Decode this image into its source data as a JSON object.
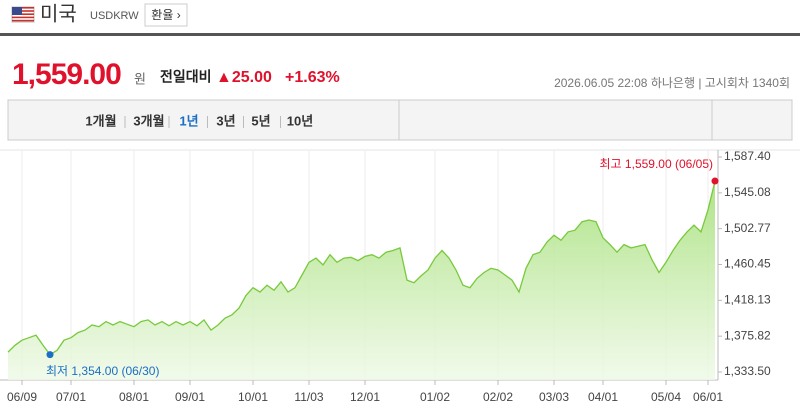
{
  "header": {
    "name": "미국",
    "code": "USDKRW",
    "button": "환율 ›"
  },
  "price": {
    "value": "1,559.00",
    "unit": "원",
    "change_label": "전일대비",
    "change": "▲25.00",
    "change_pct": "+1.63%",
    "info": "2026.06.05 22:08 하나은행 | 고시회차 1340회"
  },
  "tabs": {
    "items": [
      "1개월",
      "3개월",
      "1년",
      "3년",
      "5년",
      "10년"
    ],
    "selected": 2
  },
  "chart_data": {
    "type": "area",
    "color": "#78c93c",
    "grid": true,
    "categories": [
      null,
      null,
      "06/09",
      null,
      null,
      null,
      null,
      null,
      null,
      "07/01",
      null,
      null,
      null,
      null,
      null,
      null,
      null,
      null,
      "08/01",
      null,
      null,
      null,
      null,
      null,
      null,
      null,
      "09/01",
      null,
      null,
      null,
      null,
      null,
      null,
      null,
      null,
      "10/01",
      null,
      null,
      null,
      null,
      null,
      null,
      null,
      "11/03",
      null,
      null,
      null,
      null,
      null,
      null,
      null,
      "12/01",
      null,
      null,
      null,
      null,
      null,
      null,
      null,
      null,
      null,
      "01/02",
      null,
      null,
      null,
      null,
      null,
      null,
      null,
      null,
      "02/02",
      null,
      null,
      null,
      null,
      null,
      null,
      null,
      "03/03",
      null,
      null,
      null,
      null,
      null,
      null,
      "04/01",
      null,
      null,
      null,
      null,
      null,
      null,
      null,
      null,
      "05/04",
      null,
      null,
      null,
      null,
      null,
      "06/01",
      null
    ],
    "values": [
      1357,
      1365,
      1371,
      1374,
      1377,
      1365,
      1354,
      1359,
      1371,
      1374,
      1380,
      1383,
      1389,
      1387,
      1393,
      1389,
      1393,
      1390,
      1387,
      1393,
      1395,
      1389,
      1393,
      1388,
      1393,
      1389,
      1393,
      1388,
      1395,
      1383,
      1389,
      1397,
      1401,
      1409,
      1424,
      1433,
      1428,
      1436,
      1430,
      1440,
      1428,
      1433,
      1448,
      1463,
      1468,
      1460,
      1472,
      1463,
      1468,
      1469,
      1465,
      1470,
      1472,
      1468,
      1475,
      1477,
      1480,
      1442,
      1439,
      1447,
      1454,
      1468,
      1477,
      1468,
      1454,
      1436,
      1433,
      1444,
      1451,
      1456,
      1454,
      1448,
      1442,
      1428,
      1456,
      1472,
      1475,
      1487,
      1495,
      1489,
      1499,
      1501,
      1511,
      1513,
      1511,
      1492,
      1484,
      1475,
      1484,
      1480,
      1482,
      1484,
      1466,
      1451,
      1463,
      1477,
      1489,
      1499,
      1507,
      1499,
      1525,
      1559
    ],
    "ylim": [
      1333.5,
      1587.4
    ],
    "yticks": [
      {
        "value": 1333.5,
        "label": "1,333.50"
      },
      {
        "value": 1375.82,
        "label": "1,375.82"
      },
      {
        "value": 1418.13,
        "label": "1,418.13"
      },
      {
        "value": 1460.45,
        "label": "1,460.45"
      },
      {
        "value": 1502.77,
        "label": "1,502.77"
      },
      {
        "value": 1545.08,
        "label": "1,545.08"
      },
      {
        "value": 1587.4,
        "label": "1,587.40"
      }
    ],
    "high_label": "최고 1,559.00 (06/05)",
    "low_label": "최저 1,354.00 (06/30)",
    "high_color": "#e0112b",
    "low_color": "#1a6fc4"
  }
}
